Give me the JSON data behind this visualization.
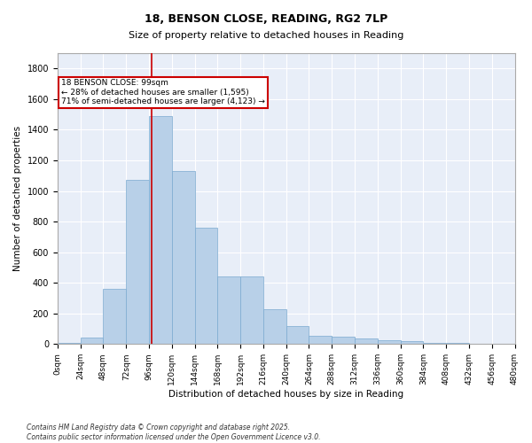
{
  "title": "18, BENSON CLOSE, READING, RG2 7LP",
  "subtitle": "Size of property relative to detached houses in Reading",
  "xlabel": "Distribution of detached houses by size in Reading",
  "ylabel": "Number of detached properties",
  "bar_color": "#b8d0e8",
  "bar_edge_color": "#7baad0",
  "background_color": "#e8eef8",
  "grid_color": "#ffffff",
  "annotation_line1": "18 BENSON CLOSE: 99sqm",
  "annotation_line2": "← 28% of detached houses are smaller (1,595)",
  "annotation_line3": "71% of semi-detached houses are larger (4,123) →",
  "annotation_box_color": "#cc0000",
  "vline_x": 99,
  "vline_color": "#cc0000",
  "footnote": "Contains HM Land Registry data © Crown copyright and database right 2025.\nContains public sector information licensed under the Open Government Licence v3.0.",
  "bin_edges": [
    0,
    24,
    48,
    72,
    96,
    120,
    144,
    168,
    192,
    216,
    240,
    264,
    288,
    312,
    336,
    360,
    384,
    408,
    432,
    456,
    480
  ],
  "bin_counts": [
    10,
    40,
    360,
    1070,
    1490,
    1130,
    760,
    440,
    440,
    230,
    120,
    55,
    50,
    35,
    25,
    20,
    5,
    5,
    2,
    2
  ],
  "ylim": [
    0,
    1900
  ],
  "yticks": [
    0,
    200,
    400,
    600,
    800,
    1000,
    1200,
    1400,
    1600,
    1800
  ],
  "figsize": [
    6.0,
    5.0
  ],
  "dpi": 100
}
